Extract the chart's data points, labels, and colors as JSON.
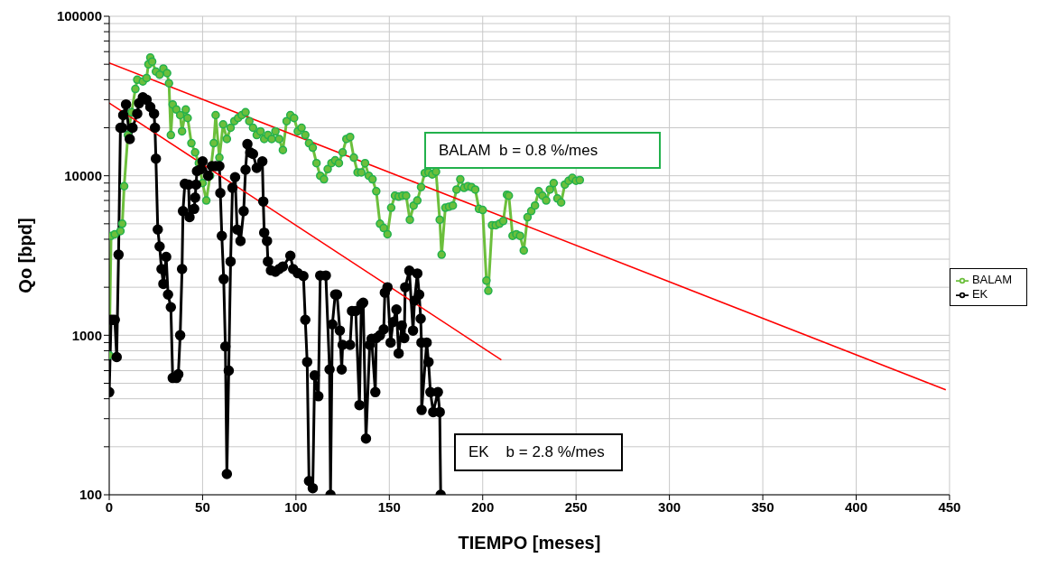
{
  "chart_data": {
    "type": "line",
    "xlabel": "TIEMPO [meses]",
    "ylabel": "Qo [bpd]",
    "log": "y",
    "grid": true,
    "legend": "right",
    "xlim": [
      0,
      450
    ],
    "xticks": [
      0,
      50,
      100,
      150,
      200,
      250,
      300,
      350,
      400,
      450
    ],
    "ylim": [
      100,
      100000
    ],
    "yticks": [
      100,
      {
        "value": 200,
        "label": null
      },
      {
        "value": 300,
        "label": null
      },
      {
        "value": 400,
        "label": null
      },
      {
        "value": 500,
        "label": null
      },
      {
        "value": 600,
        "label": null
      },
      {
        "value": 700,
        "label": null
      },
      {
        "value": 800,
        "label": null
      },
      {
        "value": 900,
        "label": null
      },
      1000,
      {
        "value": 2000,
        "label": null
      },
      {
        "value": 3000,
        "label": null
      },
      {
        "value": 4000,
        "label": null
      },
      {
        "value": 5000,
        "label": null
      },
      {
        "value": 6000,
        "label": null
      },
      {
        "value": 7000,
        "label": null
      },
      {
        "value": 8000,
        "label": null
      },
      {
        "value": 9000,
        "label": null
      },
      10000,
      {
        "value": 20000,
        "label": null
      },
      {
        "value": 30000,
        "label": null
      },
      {
        "value": 40000,
        "label": null
      },
      {
        "value": 50000,
        "label": null
      },
      {
        "value": 60000,
        "label": null
      },
      {
        "value": 70000,
        "label": null
      },
      {
        "value": 80000,
        "label": null
      },
      {
        "value": 90000,
        "label": null
      },
      100000
    ],
    "annotations": [
      "BALAM  b = 0.8 %/mes",
      "EK    b = 2.8 %/mes"
    ],
    "series": [
      {
        "name": "BALAM",
        "color": "#6cbf3c",
        "marker": "circle",
        "line_style": "solid",
        "x": [
          0,
          1,
          3,
          6,
          7,
          8,
          10,
          12,
          14,
          15,
          18,
          20,
          21,
          22,
          23,
          25,
          27,
          29,
          31,
          32,
          33,
          34,
          36,
          38,
          39,
          41,
          42,
          44,
          46,
          48,
          50,
          52,
          54,
          56,
          57,
          59,
          61,
          63,
          65,
          67,
          69,
          71,
          73,
          75,
          77,
          79,
          81,
          83,
          85,
          87,
          89,
          91,
          93,
          95,
          97,
          99,
          101,
          103,
          105,
          107,
          109,
          111,
          113,
          115,
          117,
          119,
          121,
          123,
          125,
          127,
          129,
          131,
          133,
          135,
          137,
          139,
          141,
          143,
          145,
          147,
          149,
          151,
          153,
          155,
          157,
          159,
          161,
          163,
          165,
          167,
          169,
          171,
          173,
          175,
          177,
          178,
          180,
          182,
          184,
          186,
          188,
          190,
          192,
          194,
          196,
          198,
          200,
          202,
          203,
          205,
          207,
          209,
          211,
          213,
          214,
          216,
          218,
          220,
          222,
          224,
          226,
          228,
          230,
          232,
          234,
          236,
          238,
          240,
          242,
          244,
          246,
          248,
          250,
          252
        ],
        "values": [
          750,
          4200,
          4300,
          4500,
          5000,
          8600,
          18000,
          25000,
          35000,
          40000,
          39000,
          41000,
          50000,
          55000,
          52000,
          45000,
          43000,
          47000,
          44000,
          38000,
          18000,
          28000,
          26000,
          24000,
          19000,
          26000,
          23000,
          16000,
          14000,
          12000,
          9000,
          7000,
          10000,
          16000,
          24000,
          13000,
          21000,
          17000,
          20000,
          22000,
          23000,
          24000,
          25000,
          22000,
          20000,
          18000,
          19000,
          17000,
          18000,
          17000,
          19000,
          17000,
          14500,
          22000,
          24000,
          23000,
          19000,
          20000,
          18000,
          16000,
          15000,
          12000,
          10000,
          9500,
          11000,
          12000,
          12500,
          12000,
          14000,
          17000,
          17500,
          13000,
          10500,
          10500,
          12000,
          10000,
          9500,
          8000,
          5000,
          4700,
          4300,
          6300,
          7500,
          7400,
          7500,
          7500,
          5300,
          6500,
          7000,
          8500,
          10400,
          10500,
          10200,
          10600,
          5300,
          3200,
          6300,
          6400,
          6500,
          8200,
          9500,
          8400,
          8600,
          8500,
          8200,
          6200,
          6100,
          2200,
          1900,
          4900,
          4900,
          5000,
          5200,
          7600,
          7500,
          4200,
          4300,
          4200,
          3400,
          5500,
          6000,
          6500,
          8000,
          7500,
          7000,
          8200,
          9000,
          7200,
          6800,
          8800,
          9300,
          9700,
          9300,
          9400
        ]
      },
      {
        "name": "EK",
        "color": "#000000",
        "marker": "circle",
        "line_style": "solid",
        "x": [
          0,
          1,
          2,
          3,
          4,
          5,
          6,
          7,
          7.5,
          9,
          11,
          12.5,
          15,
          16,
          18,
          20,
          22,
          24,
          24.5,
          25,
          26,
          27,
          28,
          29,
          30.5,
          31.5,
          33,
          34,
          36,
          37,
          38,
          39,
          39.5,
          40.5,
          42.5,
          43,
          45.5,
          46,
          46.5,
          47,
          49,
          50,
          53,
          55,
          57,
          59,
          59.5,
          60.3,
          61.3,
          62.2,
          63,
          64,
          65,
          66,
          67.4,
          68.5,
          70.3,
          72,
          73,
          74,
          75.5,
          77,
          79,
          82,
          82.5,
          83,
          84.5,
          85,
          86.6,
          89,
          91,
          93,
          97,
          98.5,
          101,
          104,
          105,
          106,
          107,
          109,
          110,
          112,
          113,
          116,
          118,
          118.5,
          119.5,
          121,
          122,
          123.5,
          124.5,
          125,
          129,
          130,
          132,
          134,
          135,
          136,
          137.5,
          139.5,
          140.5,
          142.5,
          143,
          145,
          147,
          147.6,
          149,
          150.7,
          152,
          153.8,
          155,
          156.7,
          158,
          158.5,
          160.7,
          162.7,
          163.5,
          165,
          166,
          166.8,
          167.2,
          167.3,
          170,
          171,
          172,
          173.5,
          176,
          177,
          177.5
        ],
        "values": [
          440,
          1250,
          1250,
          1250,
          730,
          3200,
          20000,
          20000,
          24000,
          28000,
          17000,
          20000,
          24500,
          28500,
          31000,
          30000,
          27000,
          24500,
          20000,
          12800,
          4600,
          3600,
          2600,
          2100,
          3100,
          1800,
          1500,
          540,
          540,
          570,
          1000,
          2600,
          6000,
          8900,
          8800,
          5500,
          6200,
          7300,
          8800,
          10700,
          11000,
          12300,
          10000,
          11500,
          11500,
          11500,
          7800,
          4200,
          2250,
          850,
          135,
          600,
          2900,
          8400,
          9800,
          4600,
          3900,
          6000,
          10900,
          15800,
          14000,
          13700,
          11200,
          12300,
          6900,
          4400,
          3900,
          2900,
          2550,
          2500,
          2600,
          2700,
          3150,
          2600,
          2450,
          2350,
          1250,
          680,
          122,
          110,
          560,
          415,
          2370,
          2370,
          610,
          100,
          1170,
          1800,
          1800,
          1070,
          610,
          870,
          870,
          1420,
          1420,
          365,
          1560,
          1600,
          225,
          870,
          950,
          440,
          960,
          1000,
          1090,
          1850,
          2000,
          900,
          1210,
          1450,
          770,
          1150,
          960,
          2000,
          2540,
          1070,
          1650,
          2440,
          1800,
          1270,
          900,
          340,
          900,
          680,
          440,
          330,
          440,
          330,
          100
        ]
      },
      {
        "type": "line",
        "color": "#ff0000",
        "marker": "none",
        "line_style": "solid",
        "x": [
          0,
          448
        ],
        "values": [
          51000,
          455
        ]
      },
      {
        "type": "line",
        "color": "#ff0000",
        "marker": "none",
        "line_style": "solid",
        "x": [
          0,
          210
        ],
        "values": [
          28600,
          700
        ]
      }
    ]
  }
}
